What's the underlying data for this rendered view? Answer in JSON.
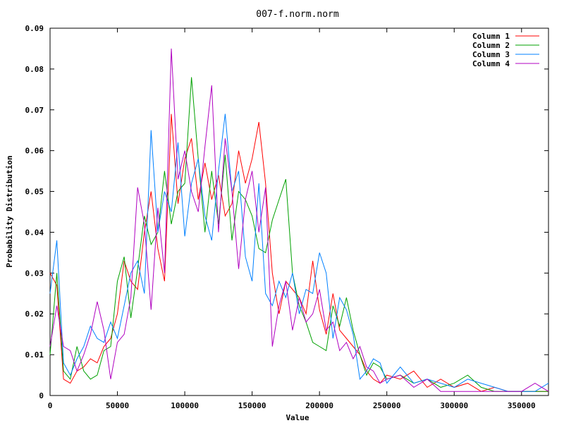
{
  "chart_data": {
    "type": "line",
    "title": "007-f.norm.norm",
    "xlabel": "Value",
    "ylabel": "Probability Distribution",
    "xlim": [
      0,
      370000
    ],
    "ylim": [
      0,
      0.09
    ],
    "x_ticks": [
      {
        "value": 0,
        "label": "0"
      },
      {
        "value": 50000,
        "label": "50000"
      },
      {
        "value": 100000,
        "label": "100000"
      },
      {
        "value": 150000,
        "label": "150000"
      },
      {
        "value": 200000,
        "label": "200000"
      },
      {
        "value": 250000,
        "label": "250000"
      },
      {
        "value": 300000,
        "label": "300000"
      },
      {
        "value": 350000,
        "label": "350000"
      }
    ],
    "y_ticks": [
      {
        "value": 0,
        "label": "0"
      },
      {
        "value": 0.01,
        "label": "0.01"
      },
      {
        "value": 0.02,
        "label": "0.02"
      },
      {
        "value": 0.03,
        "label": "0.03"
      },
      {
        "value": 0.04,
        "label": "0.04"
      },
      {
        "value": 0.05,
        "label": "0.05"
      },
      {
        "value": 0.06,
        "label": "0.06"
      },
      {
        "value": 0.07,
        "label": "0.07"
      },
      {
        "value": 0.08,
        "label": "0.08"
      },
      {
        "value": 0.09,
        "label": "0.09"
      }
    ],
    "legend_position": "top-right",
    "grid": false,
    "series": [
      {
        "name": "Column 1",
        "color": "#ff0000",
        "x": [
          0,
          5000,
          10000,
          15000,
          20000,
          25000,
          30000,
          35000,
          40000,
          45000,
          50000,
          55000,
          60000,
          65000,
          70000,
          75000,
          80000,
          85000,
          90000,
          95000,
          100000,
          105000,
          110000,
          115000,
          120000,
          125000,
          130000,
          135000,
          140000,
          145000,
          150000,
          155000,
          160000,
          165000,
          170000,
          175000,
          180000,
          185000,
          190000,
          195000,
          200000,
          205000,
          210000,
          215000,
          220000,
          225000,
          230000,
          235000,
          240000,
          245000,
          250000,
          260000,
          270000,
          280000,
          290000,
          300000,
          310000,
          320000,
          330000,
          340000,
          350000,
          360000,
          370000
        ],
        "y": [
          0.03,
          0.027,
          0.004,
          0.003,
          0.006,
          0.007,
          0.009,
          0.008,
          0.012,
          0.014,
          0.02,
          0.033,
          0.028,
          0.026,
          0.04,
          0.05,
          0.036,
          0.028,
          0.069,
          0.047,
          0.058,
          0.063,
          0.048,
          0.057,
          0.048,
          0.054,
          0.044,
          0.047,
          0.06,
          0.052,
          0.058,
          0.067,
          0.052,
          0.03,
          0.02,
          0.028,
          0.026,
          0.024,
          0.02,
          0.033,
          0.021,
          0.015,
          0.025,
          0.016,
          0.014,
          0.012,
          0.01,
          0.006,
          0.004,
          0.003,
          0.005,
          0.004,
          0.006,
          0.002,
          0.004,
          0.002,
          0.003,
          0.001,
          0.002,
          0.001,
          0.001,
          0.001,
          0.001
        ]
      },
      {
        "name": "Column 2",
        "color": "#00a000",
        "x": [
          0,
          5000,
          10000,
          15000,
          20000,
          25000,
          30000,
          35000,
          40000,
          45000,
          50000,
          55000,
          60000,
          65000,
          70000,
          75000,
          80000,
          85000,
          90000,
          95000,
          100000,
          105000,
          110000,
          115000,
          120000,
          125000,
          130000,
          135000,
          140000,
          145000,
          150000,
          155000,
          160000,
          165000,
          170000,
          175000,
          180000,
          185000,
          190000,
          195000,
          200000,
          205000,
          210000,
          215000,
          220000,
          225000,
          230000,
          235000,
          240000,
          245000,
          250000,
          260000,
          270000,
          280000,
          290000,
          300000,
          310000,
          320000,
          330000,
          340000,
          350000,
          360000,
          370000
        ],
        "y": [
          0.01,
          0.03,
          0.006,
          0.004,
          0.012,
          0.006,
          0.004,
          0.005,
          0.011,
          0.012,
          0.028,
          0.034,
          0.019,
          0.031,
          0.044,
          0.037,
          0.04,
          0.055,
          0.042,
          0.05,
          0.052,
          0.078,
          0.058,
          0.04,
          0.055,
          0.042,
          0.059,
          0.038,
          0.05,
          0.048,
          0.044,
          0.036,
          0.035,
          0.043,
          0.048,
          0.053,
          0.03,
          0.022,
          0.018,
          0.013,
          0.012,
          0.011,
          0.022,
          0.017,
          0.024,
          0.016,
          0.01,
          0.005,
          0.008,
          0.007,
          0.004,
          0.005,
          0.003,
          0.004,
          0.002,
          0.003,
          0.005,
          0.002,
          0.001,
          0.001,
          0.001,
          0.001,
          0.001
        ]
      },
      {
        "name": "Column 3",
        "color": "#0080ff",
        "x": [
          0,
          5000,
          10000,
          15000,
          20000,
          25000,
          30000,
          35000,
          40000,
          45000,
          50000,
          55000,
          60000,
          65000,
          70000,
          75000,
          80000,
          85000,
          90000,
          95000,
          100000,
          105000,
          110000,
          115000,
          120000,
          125000,
          130000,
          135000,
          140000,
          145000,
          150000,
          155000,
          160000,
          165000,
          170000,
          175000,
          180000,
          185000,
          190000,
          195000,
          200000,
          205000,
          210000,
          215000,
          220000,
          225000,
          230000,
          235000,
          240000,
          245000,
          250000,
          260000,
          270000,
          280000,
          290000,
          300000,
          310000,
          320000,
          330000,
          340000,
          350000,
          360000,
          370000
        ],
        "y": [
          0.025,
          0.038,
          0.008,
          0.005,
          0.009,
          0.012,
          0.017,
          0.014,
          0.013,
          0.018,
          0.014,
          0.022,
          0.03,
          0.033,
          0.025,
          0.065,
          0.04,
          0.05,
          0.045,
          0.062,
          0.039,
          0.052,
          0.058,
          0.044,
          0.038,
          0.055,
          0.069,
          0.05,
          0.055,
          0.034,
          0.028,
          0.052,
          0.025,
          0.022,
          0.028,
          0.024,
          0.03,
          0.02,
          0.026,
          0.025,
          0.035,
          0.03,
          0.014,
          0.024,
          0.021,
          0.015,
          0.004,
          0.006,
          0.009,
          0.008,
          0.003,
          0.007,
          0.003,
          0.004,
          0.003,
          0.002,
          0.004,
          0.003,
          0.002,
          0.001,
          0.001,
          0.001,
          0.003
        ]
      },
      {
        "name": "Column 4",
        "color": "#b000c0",
        "x": [
          0,
          5000,
          10000,
          15000,
          20000,
          25000,
          30000,
          35000,
          40000,
          45000,
          50000,
          55000,
          60000,
          65000,
          70000,
          75000,
          80000,
          85000,
          90000,
          95000,
          100000,
          105000,
          110000,
          115000,
          120000,
          125000,
          130000,
          135000,
          140000,
          145000,
          150000,
          155000,
          160000,
          165000,
          170000,
          175000,
          180000,
          185000,
          190000,
          195000,
          200000,
          205000,
          210000,
          215000,
          220000,
          225000,
          230000,
          235000,
          240000,
          245000,
          250000,
          260000,
          270000,
          280000,
          290000,
          300000,
          310000,
          320000,
          330000,
          340000,
          350000,
          360000,
          370000
        ],
        "y": [
          0.012,
          0.022,
          0.012,
          0.011,
          0.006,
          0.01,
          0.015,
          0.023,
          0.016,
          0.004,
          0.013,
          0.015,
          0.024,
          0.051,
          0.042,
          0.021,
          0.046,
          0.03,
          0.085,
          0.053,
          0.06,
          0.05,
          0.045,
          0.061,
          0.076,
          0.04,
          0.063,
          0.05,
          0.031,
          0.048,
          0.055,
          0.04,
          0.051,
          0.012,
          0.022,
          0.028,
          0.016,
          0.024,
          0.018,
          0.02,
          0.026,
          0.016,
          0.018,
          0.011,
          0.013,
          0.009,
          0.012,
          0.007,
          0.006,
          0.003,
          0.004,
          0.005,
          0.002,
          0.004,
          0.001,
          0.001,
          0.001,
          0.001,
          0.001,
          0.001,
          0.001,
          0.003,
          0.001
        ]
      }
    ]
  }
}
